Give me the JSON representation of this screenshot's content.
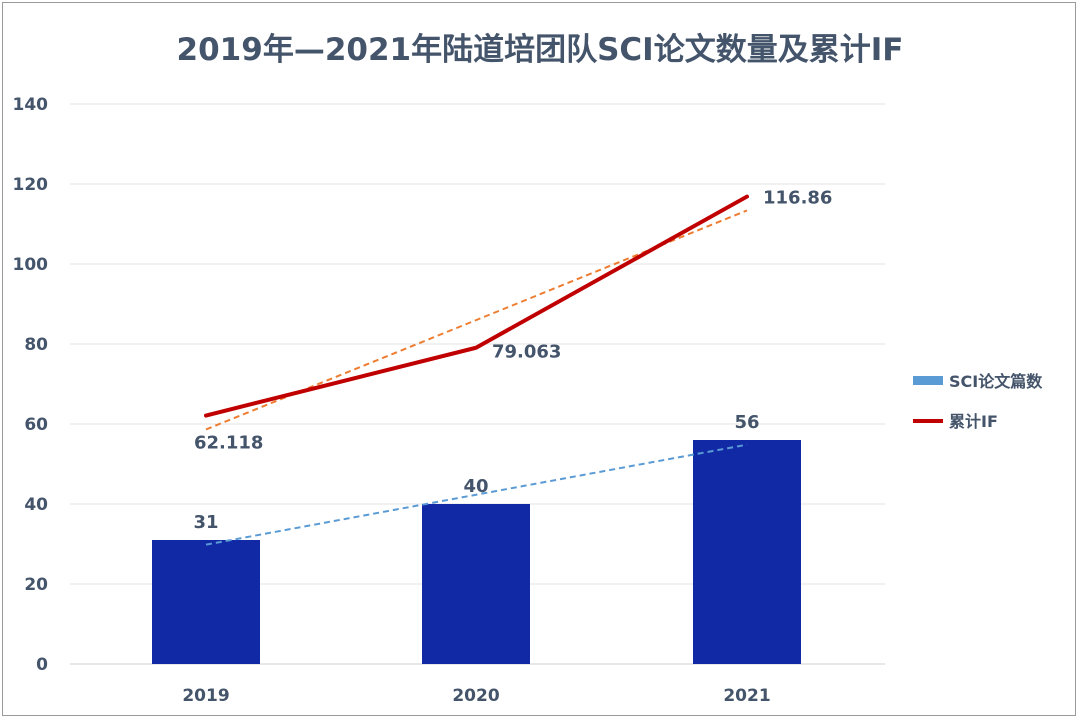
{
  "chart_data": {
    "type": "bar",
    "title": "2019年—2021年陆道培团队SCI论文数量及累计IF",
    "categories": [
      "2019",
      "2020",
      "2021"
    ],
    "ylim": [
      0,
      140
    ],
    "yticks": [
      0,
      20,
      40,
      60,
      80,
      100,
      120,
      140
    ],
    "grid": true,
    "legend_position": "right",
    "series": [
      {
        "name": "SCI论文篇数",
        "type": "bar",
        "color": "#1229a6",
        "legend_color": "#5b9bd5",
        "values": [
          31,
          40,
          56
        ],
        "labels": [
          "31",
          "40",
          "56"
        ],
        "trendline": {
          "color": "#5b9bd5",
          "style": "dashed"
        }
      },
      {
        "name": "累计IF",
        "type": "line",
        "color": "#c00000",
        "values": [
          62.118,
          79.063,
          116.86
        ],
        "labels": [
          "62.118",
          "79.063",
          "116.86"
        ],
        "trendline": {
          "color": "#ed7d31",
          "style": "dashed"
        }
      }
    ]
  }
}
